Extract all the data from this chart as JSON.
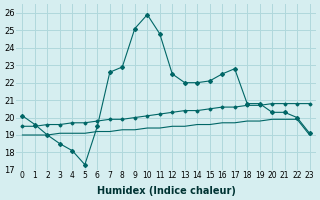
{
  "xlabel": "Humidex (Indice chaleur)",
  "ylabel": "",
  "background_color": "#d6eef0",
  "grid_color": "#b0d8dc",
  "line_color": "#006666",
  "xlim": [
    -0.5,
    23.5
  ],
  "ylim": [
    17,
    26.5
  ],
  "yticks": [
    17,
    18,
    19,
    20,
    21,
    22,
    23,
    24,
    25,
    26
  ],
  "xtick_labels": [
    "0",
    "1",
    "2",
    "3",
    "4",
    "5",
    "6",
    "7",
    "8",
    "9",
    "10",
    "11",
    "12",
    "13",
    "14",
    "15",
    "16",
    "17",
    "18",
    "19",
    "20",
    "21",
    "22",
    "23"
  ],
  "curve1_x": [
    0,
    1,
    2,
    3,
    4,
    5,
    6,
    7,
    8,
    9,
    10,
    11,
    12,
    13,
    14,
    15,
    16,
    17,
    18,
    19,
    20,
    21,
    22,
    23
  ],
  "curve1_y": [
    20.1,
    19.6,
    19.0,
    18.5,
    18.1,
    17.3,
    19.5,
    22.6,
    22.9,
    25.1,
    25.9,
    24.8,
    22.5,
    22.0,
    22.0,
    22.1,
    22.5,
    22.8,
    20.8,
    20.8,
    20.3,
    20.3,
    20.0,
    19.1
  ],
  "curve2_x": [
    0,
    1,
    2,
    3,
    4,
    5,
    6,
    7,
    8,
    9,
    10,
    11,
    12,
    13,
    14,
    15,
    16,
    17,
    18,
    19,
    20,
    21,
    22,
    23
  ],
  "curve2_y": [
    19.0,
    19.0,
    19.0,
    19.1,
    19.1,
    19.1,
    19.2,
    19.2,
    19.3,
    19.3,
    19.4,
    19.4,
    19.5,
    19.5,
    19.6,
    19.6,
    19.7,
    19.7,
    19.8,
    19.8,
    19.9,
    19.9,
    19.9,
    19.0
  ],
  "curve3_x": [
    0,
    1,
    2,
    3,
    4,
    5,
    6,
    7,
    8,
    9,
    10,
    11,
    12,
    13,
    14,
    15,
    16,
    17,
    18,
    19,
    20,
    21,
    22,
    23
  ],
  "curve3_y": [
    19.5,
    19.5,
    19.6,
    19.6,
    19.7,
    19.7,
    19.8,
    19.9,
    19.9,
    20.0,
    20.1,
    20.2,
    20.3,
    20.4,
    20.4,
    20.5,
    20.6,
    20.6,
    20.7,
    20.7,
    20.8,
    20.8,
    20.8,
    20.8
  ]
}
